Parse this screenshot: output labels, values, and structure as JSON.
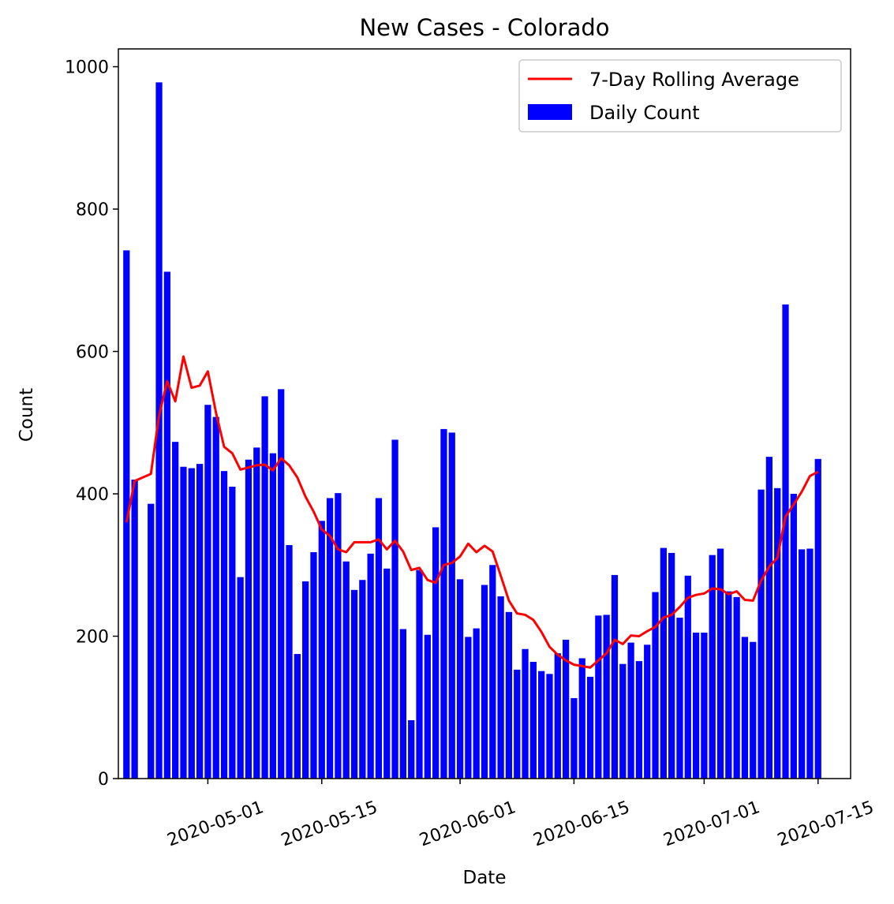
{
  "chart_data": {
    "type": "bar",
    "title": "New Cases - Colorado",
    "xlabel": "Date",
    "ylabel": "Count",
    "ylim": [
      0,
      1025
    ],
    "yticks": [
      0,
      200,
      400,
      600,
      800,
      1000
    ],
    "xlim": [
      "2020-04-20",
      "2020-07-19"
    ],
    "xticks": [
      "2020-05-01",
      "2020-05-15",
      "2020-06-01",
      "2020-06-15",
      "2020-07-01",
      "2020-07-15"
    ],
    "legend_position": "top-right",
    "colors": {
      "bars": "#0000ff",
      "line": "#ff0000"
    },
    "series": [
      {
        "name": "7-Day Rolling Average",
        "kind": "line",
        "points": [
          [
            "2020-04-21",
            360
          ],
          [
            "2020-04-22",
            418
          ],
          [
            "2020-04-24",
            428
          ],
          [
            "2020-04-25",
            510
          ],
          [
            "2020-04-26",
            558
          ],
          [
            "2020-04-27",
            530
          ],
          [
            "2020-04-28",
            593
          ],
          [
            "2020-04-29",
            549
          ],
          [
            "2020-04-30",
            552
          ],
          [
            "2020-05-01",
            572
          ],
          [
            "2020-05-02",
            514
          ],
          [
            "2020-05-03",
            466
          ],
          [
            "2020-05-04",
            457
          ],
          [
            "2020-05-05",
            434
          ],
          [
            "2020-05-06",
            437
          ],
          [
            "2020-05-07",
            440
          ],
          [
            "2020-05-08",
            441
          ],
          [
            "2020-05-09",
            433
          ],
          [
            "2020-05-10",
            450
          ],
          [
            "2020-05-11",
            440
          ],
          [
            "2020-05-12",
            423
          ],
          [
            "2020-05-13",
            396
          ],
          [
            "2020-05-14",
            375
          ],
          [
            "2020-05-15",
            350
          ],
          [
            "2020-05-16",
            341
          ],
          [
            "2020-05-17",
            322
          ],
          [
            "2020-05-18",
            318
          ],
          [
            "2020-05-19",
            332
          ],
          [
            "2020-05-20",
            332
          ],
          [
            "2020-05-21",
            332
          ],
          [
            "2020-05-22",
            336
          ],
          [
            "2020-05-23",
            322
          ],
          [
            "2020-05-24",
            334
          ],
          [
            "2020-05-25",
            319
          ],
          [
            "2020-05-26",
            293
          ],
          [
            "2020-05-27",
            296
          ],
          [
            "2020-05-28",
            279
          ],
          [
            "2020-05-29",
            275
          ],
          [
            "2020-05-30",
            300
          ],
          [
            "2020-05-31",
            303
          ],
          [
            "2020-06-01",
            312
          ],
          [
            "2020-06-02",
            330
          ],
          [
            "2020-06-03",
            318
          ],
          [
            "2020-06-04",
            327
          ],
          [
            "2020-06-05",
            319
          ],
          [
            "2020-06-06",
            285
          ],
          [
            "2020-06-07",
            250
          ],
          [
            "2020-06-08",
            232
          ],
          [
            "2020-06-09",
            230
          ],
          [
            "2020-06-10",
            223
          ],
          [
            "2020-06-11",
            206
          ],
          [
            "2020-06-12",
            185
          ],
          [
            "2020-06-13",
            174
          ],
          [
            "2020-06-14",
            166
          ],
          [
            "2020-06-15",
            160
          ],
          [
            "2020-06-16",
            158
          ],
          [
            "2020-06-17",
            156
          ],
          [
            "2020-06-18",
            166
          ],
          [
            "2020-06-19",
            176
          ],
          [
            "2020-06-20",
            195
          ],
          [
            "2020-06-21",
            189
          ],
          [
            "2020-06-22",
            201
          ],
          [
            "2020-06-23",
            200
          ],
          [
            "2020-06-24",
            207
          ],
          [
            "2020-06-25",
            213
          ],
          [
            "2020-06-26",
            226
          ],
          [
            "2020-06-27",
            230
          ],
          [
            "2020-06-28",
            241
          ],
          [
            "2020-06-29",
            254
          ],
          [
            "2020-06-30",
            258
          ],
          [
            "2020-07-01",
            260
          ],
          [
            "2020-07-02",
            267
          ],
          [
            "2020-07-03",
            266
          ],
          [
            "2020-07-04",
            259
          ],
          [
            "2020-07-05",
            263
          ],
          [
            "2020-07-06",
            251
          ],
          [
            "2020-07-07",
            250
          ],
          [
            "2020-07-08",
            278
          ],
          [
            "2020-07-09",
            298
          ],
          [
            "2020-07-10",
            310
          ],
          [
            "2020-07-11",
            368
          ],
          [
            "2020-07-12",
            385
          ],
          [
            "2020-07-13",
            403
          ],
          [
            "2020-07-14",
            425
          ],
          [
            "2020-07-15",
            431
          ]
        ]
      },
      {
        "name": "Daily Count",
        "kind": "bar",
        "points": [
          [
            "2020-04-21",
            742
          ],
          [
            "2020-04-22",
            420
          ],
          [
            "2020-04-24",
            386
          ],
          [
            "2020-04-25",
            978
          ],
          [
            "2020-04-26",
            712
          ],
          [
            "2020-04-27",
            473
          ],
          [
            "2020-04-28",
            438
          ],
          [
            "2020-04-29",
            436
          ],
          [
            "2020-04-30",
            442
          ],
          [
            "2020-05-01",
            525
          ],
          [
            "2020-05-02",
            508
          ],
          [
            "2020-05-03",
            432
          ],
          [
            "2020-05-04",
            410
          ],
          [
            "2020-05-05",
            283
          ],
          [
            "2020-05-06",
            448
          ],
          [
            "2020-05-07",
            465
          ],
          [
            "2020-05-08",
            537
          ],
          [
            "2020-05-09",
            457
          ],
          [
            "2020-05-10",
            547
          ],
          [
            "2020-05-11",
            328
          ],
          [
            "2020-05-12",
            175
          ],
          [
            "2020-05-13",
            277
          ],
          [
            "2020-05-14",
            318
          ],
          [
            "2020-05-15",
            362
          ],
          [
            "2020-05-16",
            394
          ],
          [
            "2020-05-17",
            401
          ],
          [
            "2020-05-18",
            305
          ],
          [
            "2020-05-19",
            265
          ],
          [
            "2020-05-20",
            279
          ],
          [
            "2020-05-21",
            316
          ],
          [
            "2020-05-22",
            394
          ],
          [
            "2020-05-23",
            295
          ],
          [
            "2020-05-24",
            476
          ],
          [
            "2020-05-25",
            210
          ],
          [
            "2020-05-26",
            82
          ],
          [
            "2020-05-27",
            293
          ],
          [
            "2020-05-28",
            202
          ],
          [
            "2020-05-29",
            353
          ],
          [
            "2020-05-30",
            491
          ],
          [
            "2020-05-31",
            486
          ],
          [
            "2020-06-01",
            280
          ],
          [
            "2020-06-02",
            199
          ],
          [
            "2020-06-03",
            211
          ],
          [
            "2020-06-04",
            272
          ],
          [
            "2020-06-05",
            300
          ],
          [
            "2020-06-06",
            256
          ],
          [
            "2020-06-07",
            234
          ],
          [
            "2020-06-08",
            153
          ],
          [
            "2020-06-09",
            182
          ],
          [
            "2020-06-10",
            164
          ],
          [
            "2020-06-11",
            151
          ],
          [
            "2020-06-12",
            147
          ],
          [
            "2020-06-13",
            176
          ],
          [
            "2020-06-14",
            195
          ],
          [
            "2020-06-15",
            113
          ],
          [
            "2020-06-16",
            169
          ],
          [
            "2020-06-17",
            143
          ],
          [
            "2020-06-18",
            229
          ],
          [
            "2020-06-19",
            230
          ],
          [
            "2020-06-20",
            286
          ],
          [
            "2020-06-21",
            161
          ],
          [
            "2020-06-22",
            191
          ],
          [
            "2020-06-23",
            165
          ],
          [
            "2020-06-24",
            188
          ],
          [
            "2020-06-25",
            262
          ],
          [
            "2020-06-26",
            324
          ],
          [
            "2020-06-27",
            317
          ],
          [
            "2020-06-28",
            226
          ],
          [
            "2020-06-29",
            285
          ],
          [
            "2020-06-30",
            205
          ],
          [
            "2020-07-01",
            205
          ],
          [
            "2020-07-02",
            314
          ],
          [
            "2020-07-03",
            323
          ],
          [
            "2020-07-04",
            263
          ],
          [
            "2020-07-05",
            255
          ],
          [
            "2020-07-06",
            199
          ],
          [
            "2020-07-07",
            192
          ],
          [
            "2020-07-08",
            406
          ],
          [
            "2020-07-09",
            452
          ],
          [
            "2020-07-10",
            408
          ],
          [
            "2020-07-11",
            666
          ],
          [
            "2020-07-12",
            400
          ],
          [
            "2020-07-13",
            322
          ],
          [
            "2020-07-14",
            323
          ],
          [
            "2020-07-15",
            449
          ]
        ]
      }
    ]
  }
}
